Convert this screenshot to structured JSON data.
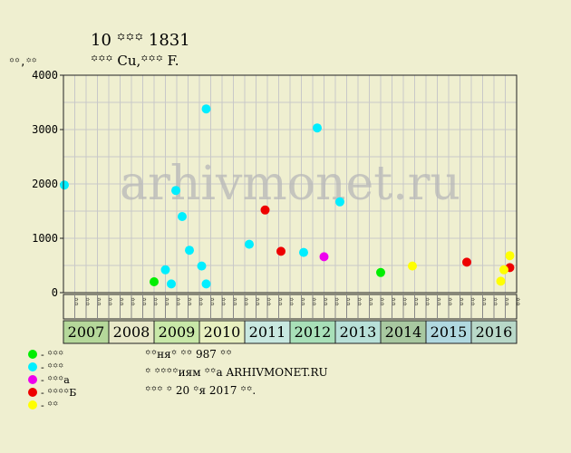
{
  "chart_data": {
    "type": "scatter",
    "title": "10 ꙳꙳꙳ 1831",
    "subtitle": "꙳꙳꙳ Cu,꙳꙳꙳ F.",
    "ylabel": "꙳꙳,꙳꙳",
    "ylim": [
      0,
      4000
    ],
    "yticks": [
      "0",
      "1000",
      "2000",
      "3000",
      "4000"
    ],
    "grid": true,
    "years": [
      "2007",
      "2008",
      "2009",
      "2010",
      "2011",
      "2012",
      "2013",
      "2014",
      "2015",
      "2016"
    ],
    "year_colors": [
      "#b5d89a",
      "#e8e8c8",
      "#c8e8a8",
      "#e8f0c0",
      "#c8e8e0",
      "#a8e0b8",
      "#b8e0d8",
      "#a8c8a0",
      "#b0d8e0",
      "#b8d8c8"
    ],
    "quarter_labels": [
      "꙳꙳",
      "꙳꙳",
      "꙳꙳",
      "꙳꙳"
    ],
    "watermark": "arhivmonet.ru",
    "series": [
      {
        "name": "꙳꙳꙳",
        "color": "#00ee00",
        "points": [
          [
            2009.0,
            200
          ],
          [
            2014.0,
            370
          ]
        ]
      },
      {
        "name": "꙳꙳꙳",
        "color": "#00eeff",
        "points": [
          [
            2007.02,
            1980
          ],
          [
            2009.25,
            420
          ],
          [
            2009.38,
            160
          ],
          [
            2009.48,
            1880
          ],
          [
            2009.62,
            1400
          ],
          [
            2009.78,
            780
          ],
          [
            2010.05,
            490
          ],
          [
            2010.15,
            160
          ],
          [
            2010.15,
            3380
          ],
          [
            2011.1,
            890
          ],
          [
            2012.3,
            740
          ],
          [
            2012.6,
            3030
          ],
          [
            2013.1,
            1670
          ]
        ]
      },
      {
        "name": "꙳꙳꙳а",
        "color": "#ee00ee",
        "points": [
          [
            2012.75,
            660
          ]
        ]
      },
      {
        "name": "꙳꙳꙳꙳Б",
        "color": "#ee0000",
        "points": [
          [
            2011.45,
            1520
          ],
          [
            2011.8,
            760
          ],
          [
            2015.9,
            560
          ],
          [
            2016.85,
            460
          ]
        ]
      },
      {
        "name": "꙳꙳",
        "color": "#ffff00",
        "points": [
          [
            2014.7,
            490
          ],
          [
            2016.65,
            210
          ],
          [
            2016.72,
            420
          ],
          [
            2016.85,
            680
          ]
        ]
      }
    ]
  },
  "legend_dash": "- ",
  "info": {
    "line1": "꙳꙳ня꙳ ꙳꙳ 987 ꙳꙳",
    "line2": "꙳ ꙳꙳꙳꙳иям ꙳꙳а ARHIVMONET.RU",
    "line3": "꙳꙳꙳ ꙳ 20 ꙳я 2017 ꙳꙳."
  }
}
